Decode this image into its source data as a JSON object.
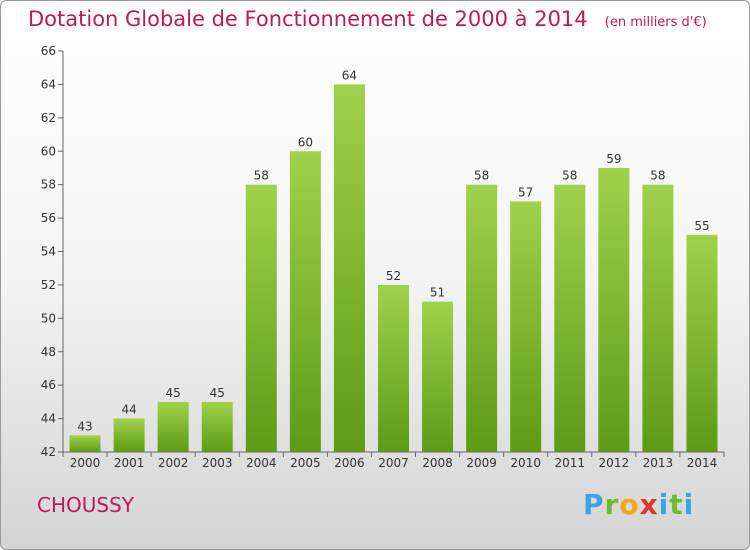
{
  "header": {
    "title": "Dotation Globale de Fonctionnement de 2000 à 2014",
    "unit": "(en milliers d'€)"
  },
  "footer": {
    "commune": "CHOUSSY",
    "logo": "Proxiti"
  },
  "colors": {
    "title": "#c0185a",
    "bar_light": "#9fd24a",
    "bar_dark": "#5e9a16",
    "axis": "#333333"
  },
  "chart_data": {
    "type": "bar",
    "categories": [
      "2000",
      "2001",
      "2002",
      "2003",
      "2004",
      "2005",
      "2006",
      "2007",
      "2008",
      "2009",
      "2010",
      "2011",
      "2012",
      "2013",
      "2014"
    ],
    "values": [
      43,
      44,
      45,
      45,
      58,
      60,
      64,
      52,
      51,
      58,
      57,
      58,
      59,
      58,
      55
    ],
    "data_labels": [
      "43",
      "44",
      "45",
      "45",
      "58",
      "60",
      "64",
      "52",
      "51",
      "58",
      "57",
      "58",
      "59",
      "58",
      "55"
    ],
    "ylim": [
      42,
      66
    ],
    "yticks": [
      42,
      44,
      46,
      48,
      50,
      52,
      54,
      56,
      58,
      60,
      62,
      64,
      66
    ],
    "grid": false,
    "legend": "none"
  }
}
